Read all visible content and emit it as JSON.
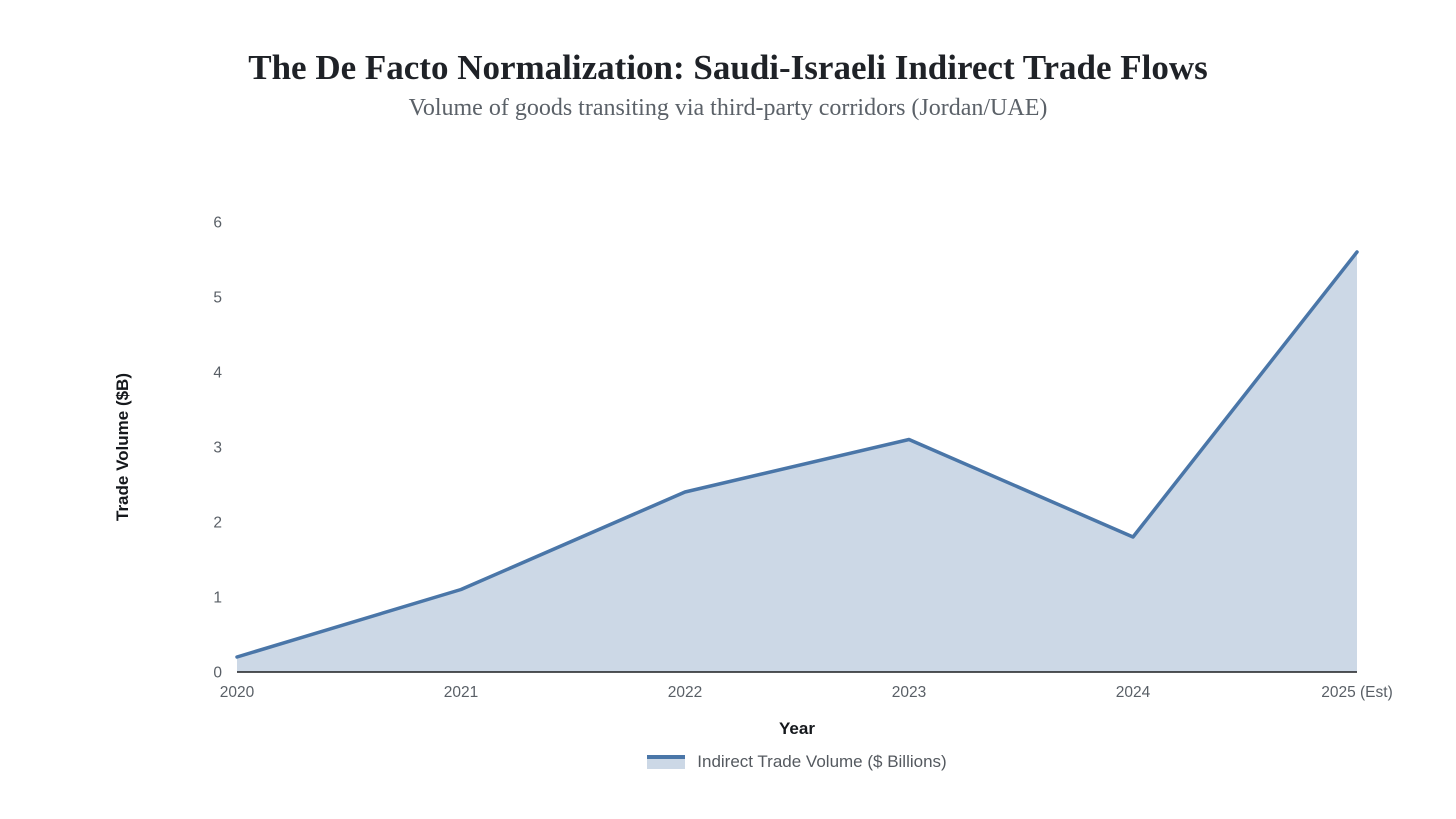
{
  "header": {
    "title": "The De Facto Normalization: Saudi-Israeli Indirect Trade Flows",
    "subtitle": "Volume of goods transiting via third-party corridors (Jordan/UAE)"
  },
  "chart_data": {
    "type": "area",
    "title": "The De Facto Normalization: Saudi-Israeli Indirect Trade Flows",
    "subtitle": "Volume of goods transiting via third-party corridors (Jordan/UAE)",
    "categories": [
      "2020",
      "2021",
      "2022",
      "2023",
      "2024",
      "2025 (Est)"
    ],
    "series": [
      {
        "name": "Indirect Trade Volume ($ Billions)",
        "values": [
          0.2,
          1.1,
          2.4,
          3.1,
          1.8,
          5.6
        ]
      }
    ],
    "xlabel": "Year",
    "ylabel": "Trade Volume ($B)",
    "ylim": [
      0,
      6
    ],
    "yticks": [
      "0",
      "1",
      "2",
      "3",
      "4",
      "5",
      "6"
    ],
    "grid": false,
    "legend_position": "bottom",
    "colors": {
      "line": "#4a76a8",
      "fill": "#ccd8e6",
      "axis_line": "#1c1e21",
      "tick_text": "#595f66"
    }
  },
  "legend": {
    "label": "Indirect Trade Volume ($ Billions)"
  }
}
